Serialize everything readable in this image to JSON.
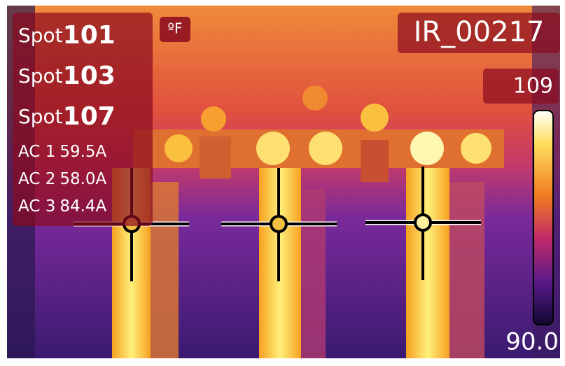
{
  "spots": [
    {
      "label": "Spot",
      "value": "101"
    },
    {
      "label": "Spot",
      "value": "103"
    },
    {
      "label": "Spot",
      "value": "107"
    }
  ],
  "clamps": [
    {
      "label": "AC 1",
      "value": "59.5A"
    },
    {
      "label": "AC 2",
      "value": "58.0A"
    },
    {
      "label": "AC 3",
      "value": "84.4A"
    }
  ],
  "unit": "ºF",
  "file_name": "IR_00217",
  "scale": {
    "max": "109",
    "min": "90.0"
  }
}
